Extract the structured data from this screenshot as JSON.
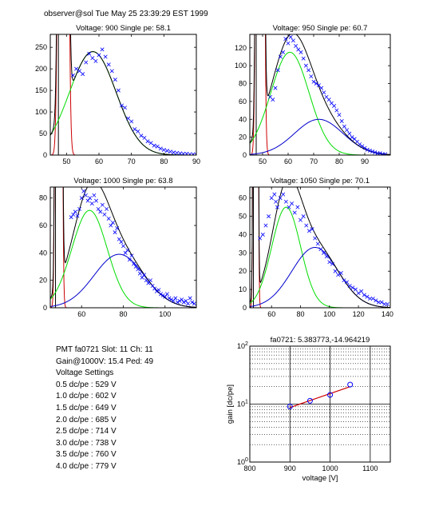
{
  "header": {
    "text": "observer@sol  Tue May 25 23:39:29 EST 1999"
  },
  "info": {
    "lines": [
      "PMT fa0721 Slot: 11 Ch: 11",
      "Gain@1000V: 15.4 Ped: 49",
      "Voltage Settings",
      "0.5 dc/pe : 529 V",
      "1.0 dc/pe : 602 V",
      "1.5 dc/pe : 649 V",
      "2.0 dc/pe : 685 V",
      "2.5 dc/pe : 714 V",
      "3.0 dc/pe : 738 V",
      "3.5 dc/pe : 760 V",
      "4.0 dc/pe : 779 V"
    ]
  },
  "colors": {
    "data": "#0000ff",
    "fit": "#000000",
    "peak1": "#00dd00",
    "peak2": "#0000cc",
    "pedestal": "#cc0000"
  },
  "chart_data": [
    {
      "type": "line",
      "title": "Voltage: 900 Single pe: 58.1",
      "xlim": [
        45,
        90
      ],
      "ylim": [
        0,
        280
      ],
      "xticks": [
        50,
        60,
        70,
        80,
        90
      ],
      "yticks": [
        0,
        50,
        100,
        150,
        200,
        250
      ],
      "ped": 49,
      "ped_sigma": 0.8,
      "ped_amp": 7000,
      "g1": {
        "mu": 58.1,
        "sigma": 7.2,
        "amp": 240
      },
      "g2": null,
      "points": [
        [
          52,
          185
        ],
        [
          53,
          200
        ],
        [
          54,
          195
        ],
        [
          55,
          188
        ],
        [
          56,
          215
        ],
        [
          57,
          235
        ],
        [
          58,
          225
        ],
        [
          59,
          218
        ],
        [
          60,
          232
        ],
        [
          61,
          245
        ],
        [
          62,
          228
        ],
        [
          63,
          210
        ],
        [
          64,
          195
        ],
        [
          65,
          175
        ],
        [
          66,
          150
        ],
        [
          67,
          115
        ],
        [
          68,
          110
        ],
        [
          69,
          85
        ],
        [
          70,
          78
        ],
        [
          71,
          60
        ],
        [
          72,
          55
        ],
        [
          73,
          45
        ],
        [
          74,
          40
        ],
        [
          75,
          32
        ],
        [
          76,
          28
        ],
        [
          77,
          22
        ],
        [
          78,
          20
        ],
        [
          79,
          15
        ],
        [
          80,
          12
        ],
        [
          81,
          10
        ],
        [
          82,
          8
        ],
        [
          83,
          6
        ],
        [
          84,
          5
        ],
        [
          85,
          4
        ],
        [
          86,
          3
        ],
        [
          87,
          3
        ],
        [
          88,
          2
        ],
        [
          89,
          2
        ],
        [
          90,
          1
        ]
      ]
    },
    {
      "type": "line",
      "title": "Voltage: 950 Single pe: 60.7",
      "xlim": [
        45,
        100
      ],
      "ylim": [
        0,
        135
      ],
      "xticks": [
        50,
        60,
        70,
        80,
        90
      ],
      "yticks": [
        0,
        20,
        40,
        60,
        80,
        100,
        120
      ],
      "ped": 49,
      "ped_sigma": 0.8,
      "ped_amp": 4000,
      "g1": {
        "mu": 60.7,
        "sigma": 7.5,
        "amp": 115
      },
      "g2": {
        "mu": 72,
        "sigma": 9.5,
        "amp": 40
      },
      "points": [
        [
          53,
          65
        ],
        [
          54,
          62
        ],
        [
          55,
          75
        ],
        [
          56,
          95
        ],
        [
          57,
          110
        ],
        [
          58,
          115
        ],
        [
          59,
          130
        ],
        [
          60,
          125
        ],
        [
          61,
          132
        ],
        [
          62,
          128
        ],
        [
          63,
          122
        ],
        [
          64,
          118
        ],
        [
          65,
          115
        ],
        [
          66,
          108
        ],
        [
          67,
          100
        ],
        [
          68,
          95
        ],
        [
          69,
          88
        ],
        [
          70,
          82
        ],
        [
          71,
          80
        ],
        [
          72,
          78
        ],
        [
          73,
          75
        ],
        [
          74,
          70
        ],
        [
          75,
          65
        ],
        [
          76,
          62
        ],
        [
          77,
          58
        ],
        [
          78,
          55
        ],
        [
          79,
          50
        ],
        [
          80,
          45
        ],
        [
          81,
          38
        ],
        [
          82,
          32
        ],
        [
          83,
          28
        ],
        [
          84,
          24
        ],
        [
          85,
          20
        ],
        [
          86,
          18
        ],
        [
          87,
          15
        ],
        [
          88,
          12
        ],
        [
          89,
          10
        ],
        [
          90,
          8
        ],
        [
          91,
          6
        ],
        [
          92,
          5
        ],
        [
          93,
          4
        ],
        [
          94,
          3
        ],
        [
          95,
          2
        ],
        [
          96,
          2
        ],
        [
          97,
          1
        ],
        [
          98,
          1
        ]
      ]
    },
    {
      "type": "line",
      "title": "Voltage: 1000 Single pe: 63.8",
      "xlim": [
        45,
        115
      ],
      "ylim": [
        0,
        88
      ],
      "xticks": [
        60,
        80,
        100
      ],
      "yticks": [
        0,
        20,
        40,
        60,
        80
      ],
      "ped": 49,
      "ped_sigma": 0.8,
      "ped_amp": 3000,
      "g1": {
        "mu": 63.8,
        "sigma": 8.5,
        "amp": 71
      },
      "g2": {
        "mu": 78,
        "sigma": 12,
        "amp": 39
      },
      "points": [
        [
          55,
          66
        ],
        [
          56,
          68
        ],
        [
          57,
          70
        ],
        [
          58,
          67
        ],
        [
          59,
          72
        ],
        [
          60,
          80
        ],
        [
          61,
          85
        ],
        [
          62,
          82
        ],
        [
          63,
          78
        ],
        [
          64,
          80
        ],
        [
          65,
          76
        ],
        [
          66,
          82
        ],
        [
          67,
          78
        ],
        [
          68,
          72
        ],
        [
          69,
          70
        ],
        [
          70,
          75
        ],
        [
          71,
          68
        ],
        [
          72,
          72
        ],
        [
          73,
          65
        ],
        [
          74,
          60
        ],
        [
          75,
          62
        ],
        [
          76,
          55
        ],
        [
          77,
          58
        ],
        [
          78,
          50
        ],
        [
          79,
          48
        ],
        [
          80,
          45
        ],
        [
          81,
          40
        ],
        [
          82,
          42
        ],
        [
          83,
          35
        ],
        [
          84,
          38
        ],
        [
          85,
          32
        ],
        [
          86,
          30
        ],
        [
          87,
          28
        ],
        [
          88,
          25
        ],
        [
          89,
          22
        ],
        [
          90,
          24
        ],
        [
          91,
          20
        ],
        [
          92,
          18
        ],
        [
          93,
          20
        ],
        [
          94,
          16
        ],
        [
          95,
          14
        ],
        [
          96,
          12
        ],
        [
          97,
          13
        ],
        [
          98,
          10
        ],
        [
          99,
          9
        ],
        [
          100,
          8
        ],
        [
          101,
          10
        ],
        [
          102,
          7
        ],
        [
          103,
          6
        ],
        [
          104,
          5
        ],
        [
          105,
          7
        ],
        [
          106,
          4
        ],
        [
          107,
          5
        ],
        [
          108,
          6
        ],
        [
          109,
          4
        ],
        [
          110,
          5
        ],
        [
          111,
          3
        ],
        [
          112,
          7
        ],
        [
          113,
          4
        ],
        [
          114,
          3
        ]
      ]
    },
    {
      "type": "line",
      "title": "Voltage: 1050 Single pe: 70.1",
      "xlim": [
        45,
        142
      ],
      "ylim": [
        0,
        66
      ],
      "xticks": [
        60,
        80,
        100,
        120,
        140
      ],
      "yticks": [
        0,
        10,
        20,
        30,
        40,
        50,
        60
      ],
      "ped": 49,
      "ped_sigma": 0.8,
      "ped_amp": 2500,
      "g1": {
        "mu": 70.1,
        "sigma": 10,
        "amp": 55
      },
      "g2": {
        "mu": 90,
        "sigma": 16,
        "amp": 33
      },
      "points": [
        [
          52,
          38
        ],
        [
          54,
          40
        ],
        [
          56,
          45
        ],
        [
          58,
          50
        ],
        [
          60,
          60
        ],
        [
          62,
          62
        ],
        [
          63,
          58
        ],
        [
          64,
          55
        ],
        [
          66,
          60
        ],
        [
          68,
          62
        ],
        [
          70,
          58
        ],
        [
          72,
          55
        ],
        [
          74,
          57
        ],
        [
          76,
          52
        ],
        [
          78,
          55
        ],
        [
          80,
          48
        ],
        [
          82,
          50
        ],
        [
          84,
          45
        ],
        [
          86,
          42
        ],
        [
          88,
          43
        ],
        [
          90,
          38
        ],
        [
          92,
          35
        ],
        [
          94,
          32
        ],
        [
          96,
          30
        ],
        [
          98,
          28
        ],
        [
          100,
          25
        ],
        [
          102,
          24
        ],
        [
          104,
          20
        ],
        [
          106,
          18
        ],
        [
          108,
          19
        ],
        [
          110,
          15
        ],
        [
          112,
          14
        ],
        [
          114,
          12
        ],
        [
          116,
          11
        ],
        [
          118,
          10
        ],
        [
          120,
          8
        ],
        [
          122,
          9
        ],
        [
          124,
          7
        ],
        [
          126,
          6
        ],
        [
          128,
          5
        ],
        [
          130,
          5
        ],
        [
          132,
          4
        ],
        [
          134,
          3
        ],
        [
          136,
          3
        ],
        [
          138,
          2
        ],
        [
          140,
          2
        ]
      ]
    },
    {
      "type": "scatter",
      "title": "fa0721: 5.383773,-14.964219",
      "xlabel": "voltage [V]",
      "ylabel": "gain [dc/pe]",
      "scale_y": "log",
      "xlim": [
        800,
        1150
      ],
      "ylim": [
        1,
        100
      ],
      "xticks": [
        800,
        900,
        1000,
        1100
      ],
      "yticks_log_exponents": [
        0,
        1,
        2
      ],
      "grid": "dotted",
      "fit": {
        "a": 5.383773,
        "b": -14.964219
      },
      "points": [
        [
          900,
          9.1
        ],
        [
          950,
          11.4
        ],
        [
          1000,
          14.4
        ],
        [
          1050,
          21.7
        ]
      ]
    }
  ]
}
